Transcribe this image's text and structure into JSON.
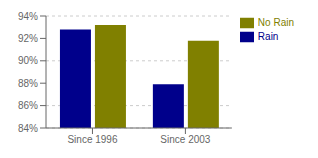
{
  "chart_data": {
    "type": "bar",
    "categories": [
      "Since 1996",
      "Since 2003"
    ],
    "series": [
      {
        "name": "Rain",
        "color": "#00008B",
        "values": [
          92.8,
          87.9
        ]
      },
      {
        "name": "No Rain",
        "color": "#808000",
        "values": [
          93.2,
          91.8
        ]
      }
    ],
    "ylim": [
      84,
      94
    ],
    "yticks": [
      {
        "value": 84,
        "label": "84%"
      },
      {
        "value": 86,
        "label": "86%"
      },
      {
        "value": 88,
        "label": "88%"
      },
      {
        "value": 90,
        "label": "90%"
      },
      {
        "value": 92,
        "label": "92%"
      },
      {
        "value": 94,
        "label": "94%"
      }
    ],
    "grid": true,
    "legend": "right"
  }
}
